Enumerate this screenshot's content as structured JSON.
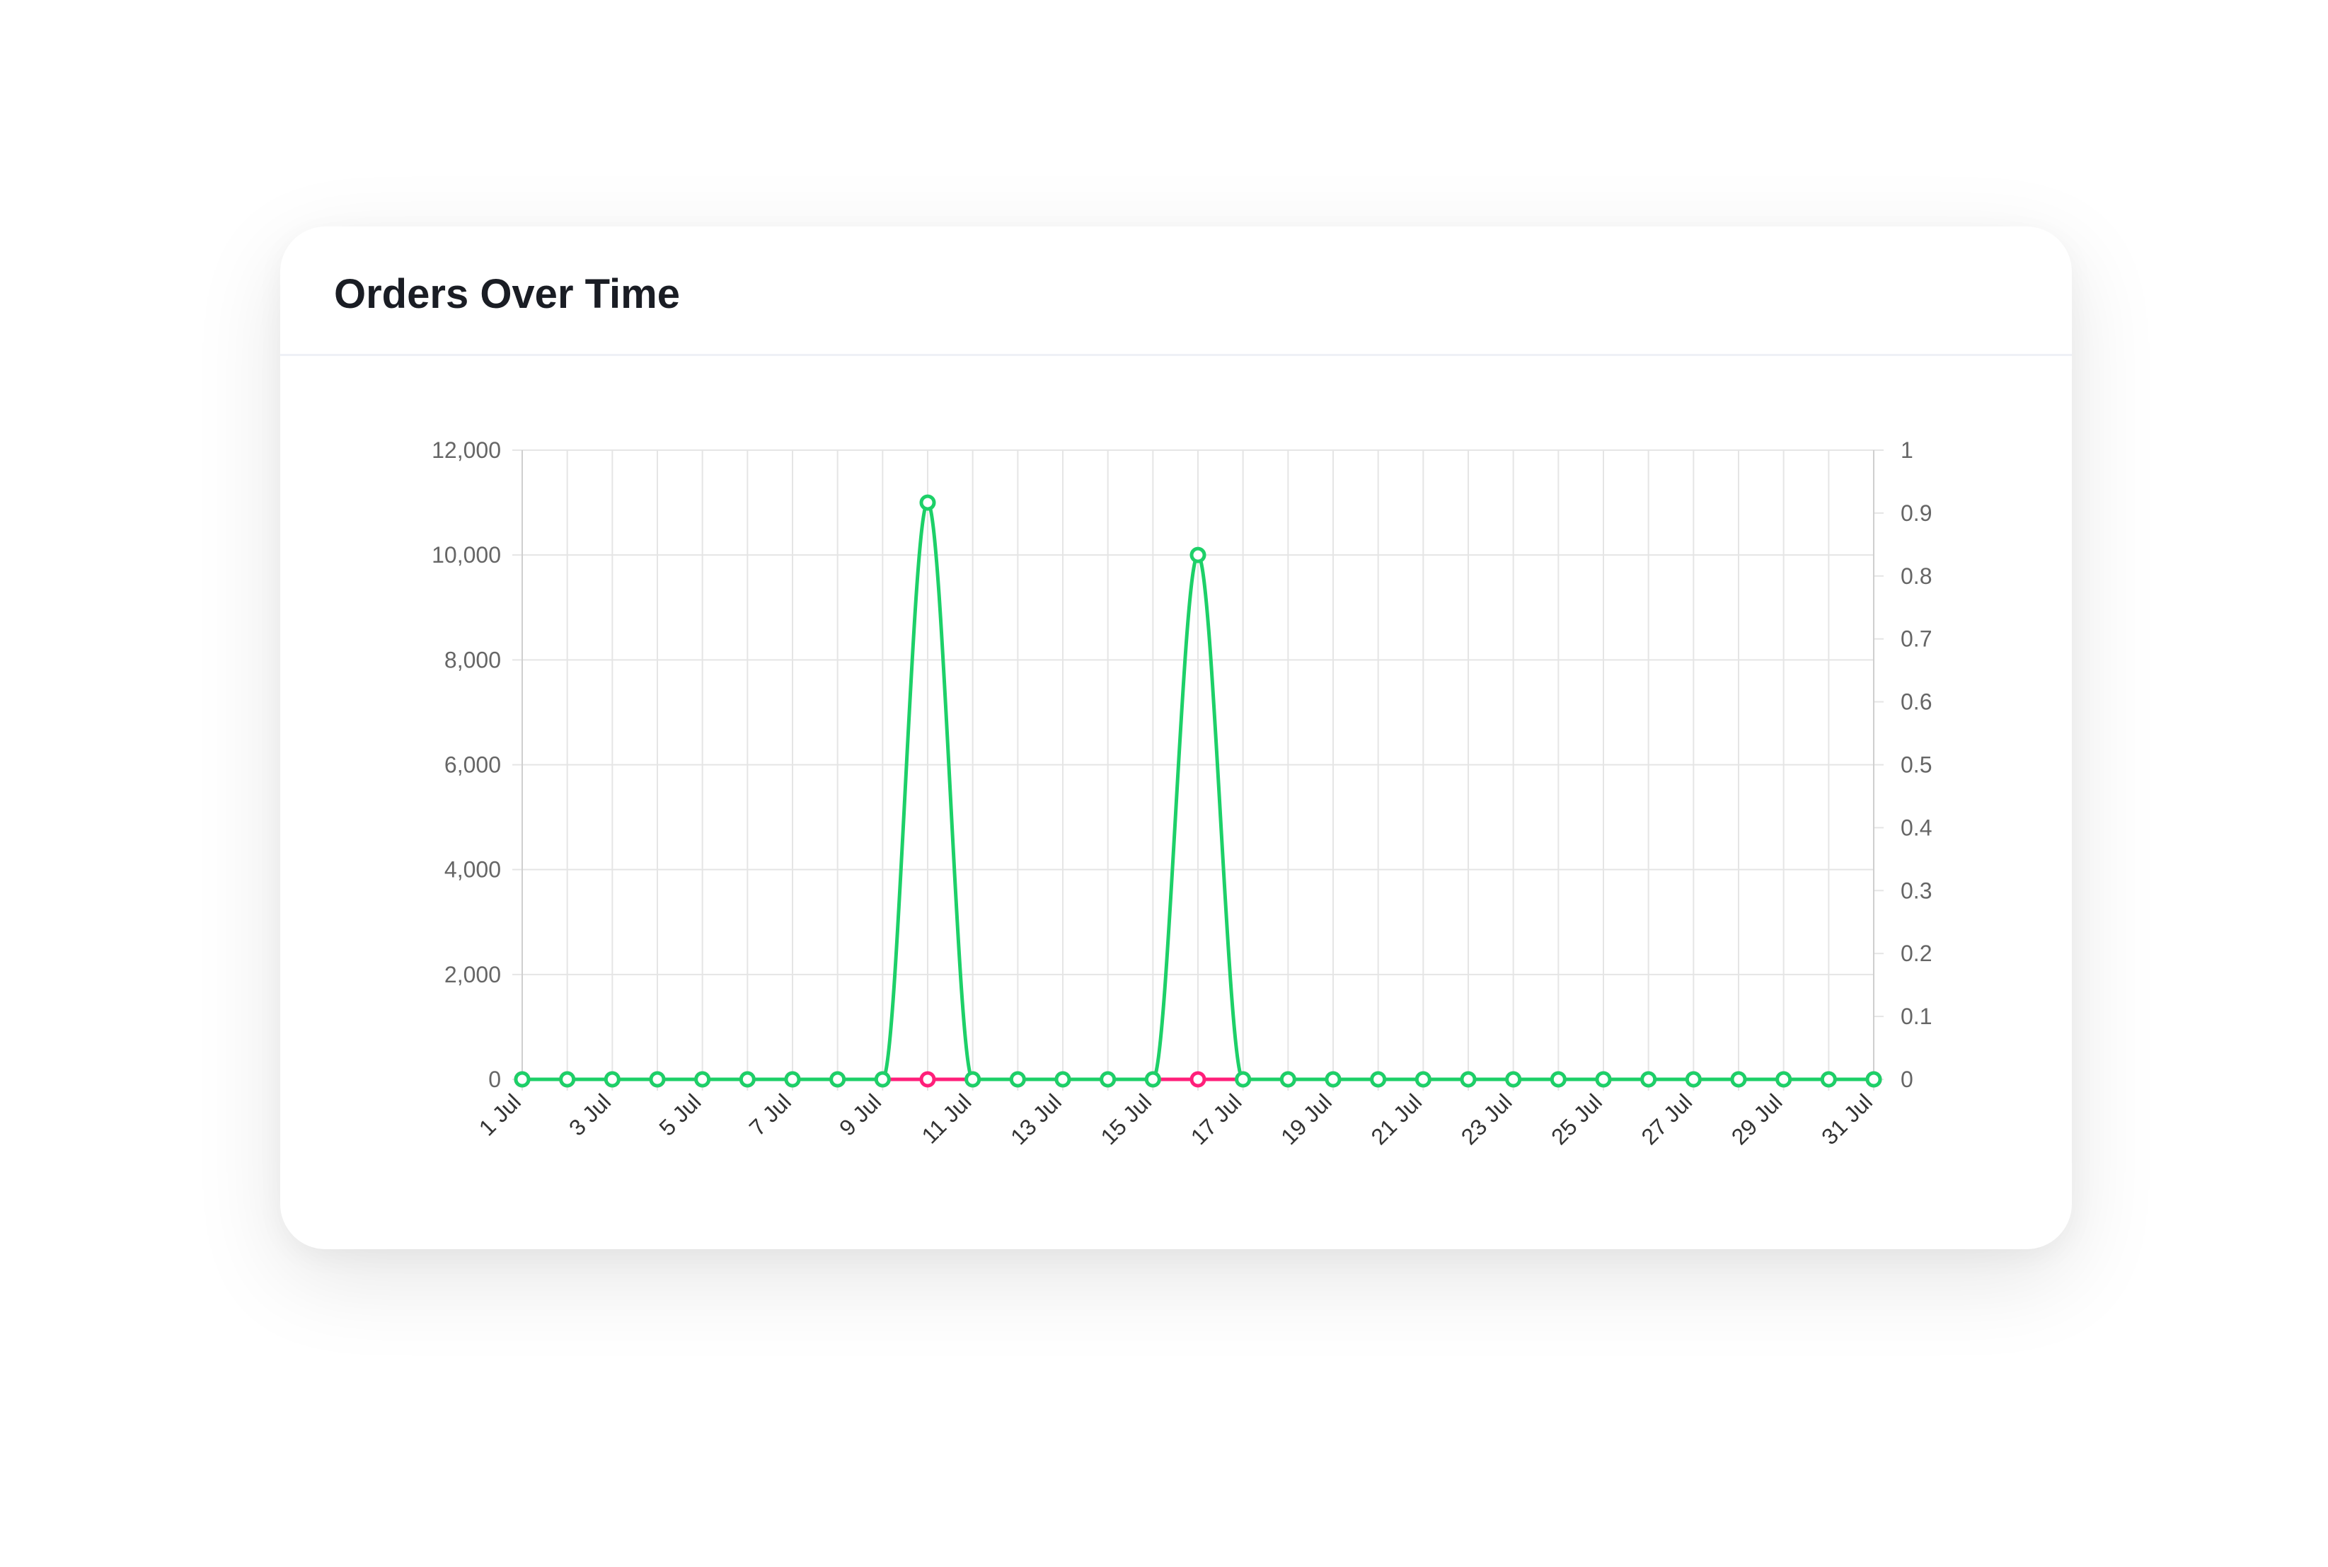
{
  "card": {
    "title": "Orders Over Time"
  },
  "colors": {
    "series_green": "#1dd068",
    "series_pink": "#ff1f7a",
    "grid": "#e5e5e5",
    "axis_text": "#666666"
  },
  "chart_data": {
    "type": "line",
    "title": "Orders Over Time",
    "xlabel": "",
    "ylabel": "",
    "grid": true,
    "legend": "none",
    "categories": [
      "1 Jul",
      "2 Jul",
      "3 Jul",
      "4 Jul",
      "5 Jul",
      "6 Jul",
      "7 Jul",
      "8 Jul",
      "9 Jul",
      "10 Jul",
      "11 Jul",
      "12 Jul",
      "13 Jul",
      "14 Jul",
      "15 Jul",
      "16 Jul",
      "17 Jul",
      "18 Jul",
      "19 Jul",
      "20 Jul",
      "21 Jul",
      "22 Jul",
      "23 Jul",
      "24 Jul",
      "25 Jul",
      "26 Jul",
      "27 Jul",
      "28 Jul",
      "29 Jul",
      "30 Jul",
      "31 Jul"
    ],
    "x_tick_labels": [
      "1 Jul",
      "3 Jul",
      "5 Jul",
      "7 Jul",
      "9 Jul",
      "11 Jul",
      "13 Jul",
      "15 Jul",
      "17 Jul",
      "19 Jul",
      "21 Jul",
      "23 Jul",
      "25 Jul",
      "27 Jul",
      "29 Jul",
      "31 Jul"
    ],
    "y_left": {
      "ylim": [
        0,
        12000
      ],
      "ticks": [
        "0",
        "2,000",
        "4,000",
        "6,000",
        "8,000",
        "10,000",
        "12,000"
      ]
    },
    "y_right": {
      "ylim": [
        0,
        1
      ],
      "ticks": [
        "0",
        "0.1",
        "0.2",
        "0.3",
        "0.4",
        "0.5",
        "0.6",
        "0.7",
        "0.8",
        "0.9",
        "1"
      ]
    },
    "series": [
      {
        "axis": "right",
        "color": "#ff1f7a",
        "values": [
          0,
          0,
          0,
          0,
          0,
          0,
          0,
          0,
          0,
          0,
          0,
          0,
          0,
          0,
          0,
          0,
          0,
          0,
          0,
          0,
          0,
          0,
          0,
          0,
          0,
          0,
          0,
          0,
          0,
          0,
          0
        ]
      },
      {
        "axis": "left",
        "color": "#1dd068",
        "values": [
          0,
          0,
          0,
          0,
          0,
          0,
          0,
          0,
          0,
          11000,
          0,
          0,
          0,
          0,
          0,
          10000,
          0,
          0,
          0,
          0,
          0,
          0,
          0,
          0,
          0,
          0,
          0,
          0,
          0,
          0,
          0
        ]
      }
    ]
  }
}
